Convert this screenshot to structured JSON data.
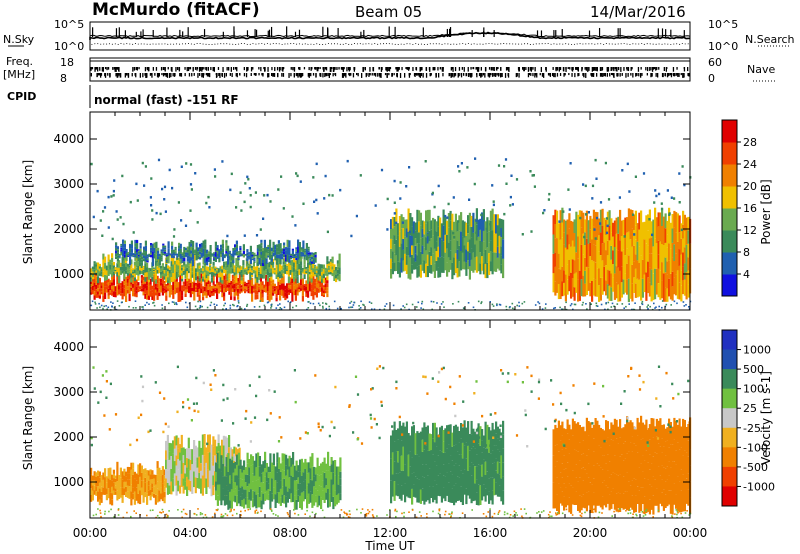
{
  "header": {
    "title": "McMurdo (fitACF)",
    "beam": "Beam 05",
    "date": "14/Mar/2016"
  },
  "noise_panel": {
    "left_label": "N.Sky",
    "right_label": "N.Search",
    "left_ticks": [
      "10^5",
      "10^0"
    ],
    "right_ticks": [
      "10^5",
      "10^0"
    ]
  },
  "freq_panel": {
    "left_label_line1": "Freq.",
    "left_label_line2": "[MHz]",
    "right_label": "Nave",
    "left_ticks": [
      "18",
      "8"
    ],
    "right_ticks": [
      "60",
      "0"
    ]
  },
  "cpid": {
    "label": "CPID",
    "text": "normal (fast) -151 RF"
  },
  "colors": {
    "power": [
      "#1010e0",
      "#2060b0",
      "#3a8a5a",
      "#6aaa50",
      "#f0c000",
      "#f08000",
      "#f04000",
      "#e00000"
    ],
    "velocity": [
      "#e00000",
      "#f04000",
      "#f08000",
      "#f0b020",
      "#c8c8c8",
      "#70c040",
      "#3a8a5a",
      "#2050b0",
      "#2030c0"
    ]
  },
  "chart_data": [
    {
      "type": "heatmap",
      "name": "power",
      "ylabel": "Slant Range [km]",
      "xlabel": "",
      "ylim": [
        200,
        4600
      ],
      "yticks": [
        "1000",
        "2000",
        "3000",
        "4000"
      ],
      "colorbar_label": "Power [dB]",
      "colorbar_ticks": [
        "4",
        "8",
        "12",
        "16",
        "20",
        "24",
        "28"
      ],
      "regions": [
        {
          "t0": 0.0,
          "t1": 9.5,
          "r0": 500,
          "r1": 900,
          "value": 28
        },
        {
          "t0": 0.0,
          "t1": 10.0,
          "r0": 900,
          "r1": 1300,
          "value": 16
        },
        {
          "t0": 1.0,
          "t1": 9.0,
          "r0": 1300,
          "r1": 1600,
          "value": 10
        },
        {
          "t0": 12.0,
          "t1": 16.5,
          "r0": 1000,
          "r1": 2300,
          "value": 14
        },
        {
          "t0": 18.5,
          "t1": 24.0,
          "r0": 500,
          "r1": 2300,
          "value": 22
        }
      ]
    },
    {
      "type": "heatmap",
      "name": "velocity",
      "ylabel": "Slant Range [km]",
      "xlabel": "Time UT",
      "ylim": [
        200,
        4600
      ],
      "yticks": [
        "1000",
        "2000",
        "3000",
        "4000"
      ],
      "xticks": [
        "00:00",
        "04:00",
        "08:00",
        "12:00",
        "16:00",
        "20:00",
        "00:00"
      ],
      "colorbar_label": "Velocity [m s-1]",
      "colorbar_ticks": [
        "1000",
        "500",
        "100",
        "25",
        "-25",
        "-100",
        "-500",
        "-1000"
      ],
      "regions": [
        {
          "t0": 0.0,
          "t1": 3.0,
          "r0": 600,
          "r1": 1300,
          "value": -100
        },
        {
          "t0": 3.0,
          "t1": 6.0,
          "r0": 800,
          "r1": 1900,
          "value": 0
        },
        {
          "t0": 5.0,
          "t1": 10.0,
          "r0": 500,
          "r1": 1500,
          "value": 100
        },
        {
          "t0": 12.0,
          "t1": 16.5,
          "r0": 600,
          "r1": 2200,
          "value": 150
        },
        {
          "t0": 18.5,
          "t1": 24.0,
          "r0": 400,
          "r1": 2300,
          "value": -200
        }
      ]
    }
  ]
}
